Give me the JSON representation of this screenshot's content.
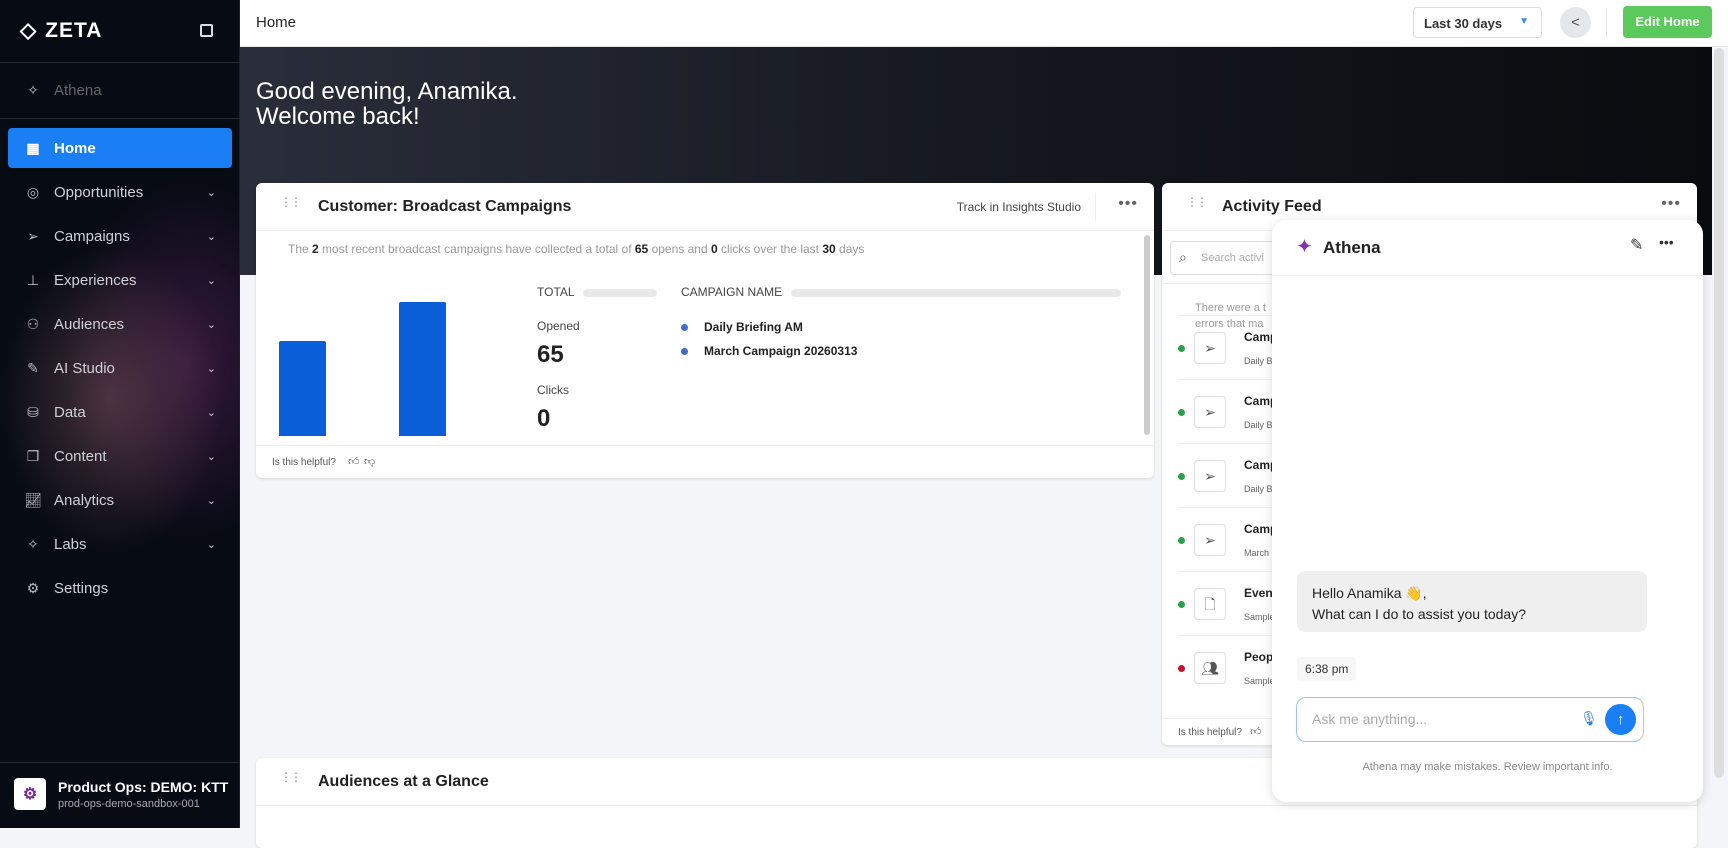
{
  "sidebar": {
    "brand": "ZETA",
    "athena": "Athena",
    "items": [
      {
        "label": "Home",
        "icon": "grid-icon",
        "active": true
      },
      {
        "label": "Opportunities",
        "icon": "target-icon"
      },
      {
        "label": "Campaigns",
        "icon": "send-icon"
      },
      {
        "label": "Experiences",
        "icon": "hierarchy-icon"
      },
      {
        "label": "Audiences",
        "icon": "audiences-icon"
      },
      {
        "label": "AI Studio",
        "icon": "ai-icon"
      },
      {
        "label": "Data",
        "icon": "database-icon"
      },
      {
        "label": "Content",
        "icon": "content-icon"
      },
      {
        "label": "Analytics",
        "icon": "analytics-icon"
      },
      {
        "label": "Labs",
        "icon": "sparkle-icon"
      },
      {
        "label": "Settings",
        "icon": "gear-icon"
      }
    ],
    "org": {
      "name": "Product Ops: DEMO: KTT",
      "id": "prod-ops-demo-sandbox-001"
    }
  },
  "topbar": {
    "title": "Home",
    "range": "Last 30 days",
    "edit": "Edit Home"
  },
  "hero": {
    "line1": "Good evening, Anamika.",
    "line2": "Welcome back!"
  },
  "broadcast": {
    "title": "Customer: Broadcast Campaigns",
    "track": "Track in Insights Studio",
    "summary": {
      "p1": "The ",
      "n1": "2",
      "p2": " most recent broadcast campaigns have collected a total of ",
      "n2": "65",
      "p3": " opens and ",
      "n3": "0",
      "p4": " clicks over the last ",
      "n4": "30",
      "p5": " days"
    },
    "total_label": "TOTAL",
    "campaign_label": "CAMPAIGN NAME",
    "opened_label": "Opened",
    "opened": "65",
    "clicks_label": "Clicks",
    "clicks": "0",
    "campaigns": [
      "Daily Briefing AM",
      "March Campaign 20260313"
    ],
    "helpful": "Is this helpful?"
  },
  "chart_data": {
    "type": "bar",
    "categories": [
      "Daily Briefing AM",
      "March Campaign 20260313"
    ],
    "values": [
      27,
      38
    ],
    "color": "#0a5ed7"
  },
  "activity": {
    "title": "Activity Feed",
    "search_placeholder": "Search activi",
    "notice1": "There were a t",
    "notice2": "errors that ma",
    "helpful": "Is this helpful?",
    "rows": [
      {
        "title": "Campa",
        "sub": "Daily Bri",
        "status": "#2e9e4f",
        "icon": "send-icon"
      },
      {
        "title": "Campa",
        "sub": "Daily Bri",
        "status": "#2e9e4f",
        "icon": "send-icon"
      },
      {
        "title": "Campa",
        "sub": "Daily Bri",
        "status": "#2e9e4f",
        "icon": "send-icon"
      },
      {
        "title": "Campa",
        "sub": "March C",
        "status": "#2e9e4f",
        "icon": "send-icon"
      },
      {
        "title": "Event I",
        "sub": "Sample_",
        "status": "#2e9e4f",
        "icon": "file-icon"
      },
      {
        "title": "People",
        "sub": "Sample_",
        "status": "#c8102e",
        "icon": "people-icon"
      }
    ]
  },
  "athena": {
    "title": "Athena",
    "greeting": "Hello Anamika 👋,",
    "question": "What can I do to assist you today?",
    "time": "6:38 pm",
    "placeholder": "Ask me anything...",
    "disclaimer": "Athena may make mistakes. Review important info."
  },
  "audiences": {
    "title": "Audiences at a Glance"
  }
}
